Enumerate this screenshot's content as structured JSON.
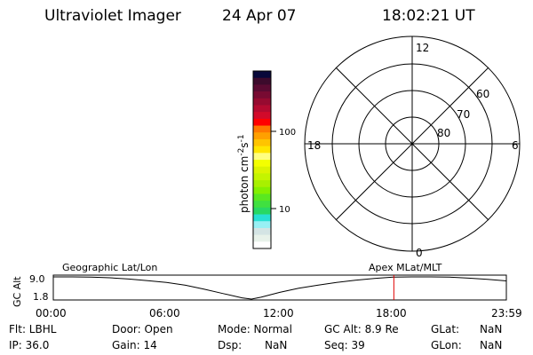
{
  "header": {
    "instrument": "Ultraviolet Imager",
    "date": "24 Apr 07",
    "time": "18:02:21 UT"
  },
  "colorbar": {
    "label": "photon cm",
    "label_sup1": "-2",
    "label_mid": "s",
    "label_sup2": "-1",
    "ticks": [
      "100",
      "10"
    ],
    "colors": [
      "#08083a",
      "#3c0a2c",
      "#5a0a32",
      "#780a32",
      "#960a30",
      "#b40a30",
      "#d20a2a",
      "#ff0000",
      "#ff7800",
      "#ffa000",
      "#ffc400",
      "#ffe600",
      "#ffff80",
      "#f4ff00",
      "#dcf400",
      "#c4f400",
      "#a8f000",
      "#84f000",
      "#5ae820",
      "#40e040",
      "#28d864",
      "#28e0d4",
      "#98f0f4",
      "#d4e4e4",
      "#e8f2ea",
      "#ffffff"
    ]
  },
  "polar": {
    "mlt_labels": {
      "top": "12",
      "left": "18",
      "right": "6",
      "bottom": "0"
    },
    "lat_labels": [
      "80",
      "70",
      "60"
    ],
    "coord_label": "Apex MLat/MLT"
  },
  "chart_data": {
    "type": "line",
    "ylabel": "GC Alt",
    "left_label": "Geographic Lat/Lon",
    "right_label": "Apex MLat/MLT",
    "x_tick_labels": [
      "00:00",
      "06:00",
      "12:00",
      "18:00",
      "23:59"
    ],
    "y_tick_labels": [
      "9.0",
      "1.8"
    ],
    "ylim": [
      1.8,
      9.0
    ],
    "x_hours": [
      0,
      1,
      2,
      3,
      4,
      5,
      6,
      7,
      8,
      9,
      10,
      10.5,
      11,
      12,
      13,
      14,
      15,
      16,
      17,
      18,
      19,
      20,
      21,
      22,
      23,
      24
    ],
    "gc_alt": [
      9.0,
      9.0,
      8.95,
      8.7,
      8.3,
      7.8,
      7.2,
      6.3,
      5.0,
      3.6,
      2.2,
      1.8,
      2.4,
      4.0,
      5.3,
      6.3,
      7.2,
      7.9,
      8.5,
      8.9,
      9.0,
      9.0,
      8.9,
      8.6,
      8.2,
      7.7
    ],
    "current_time_hours": 18.04,
    "marker_color": "#e00000"
  },
  "status": {
    "flt": "Flt: LBHL",
    "ip": "IP: 36.0",
    "door": "Door: Open",
    "gain": "Gain: 14",
    "mode": "Mode: Normal",
    "dsp_label": "Dsp:",
    "dsp_value": "NaN",
    "gc_alt": "GC Alt: 8.9 Re",
    "seq": "Seq: 39",
    "glat_label": "GLat:",
    "glat_value": "NaN",
    "glon_label": "GLon:",
    "glon_value": "NaN"
  }
}
